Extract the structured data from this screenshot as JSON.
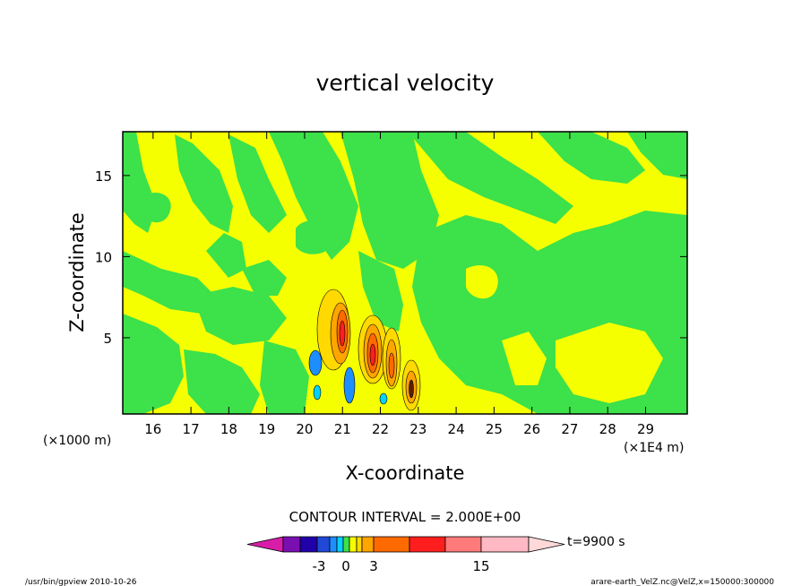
{
  "chart_data": {
    "type": "heatmap",
    "title": "vertical velocity",
    "xlabel": "X-coordinate",
    "ylabel": "Z-coordinate",
    "x_unit_left": "(×1000 m)",
    "x_unit_right": "(×1E4 m)",
    "xlim": [
      15.2,
      30.1
    ],
    "ylim": [
      0.3,
      17.7
    ],
    "x_ticks": [
      16,
      17,
      18,
      19,
      20,
      21,
      22,
      23,
      24,
      25,
      26,
      27,
      28,
      29
    ],
    "y_ticks": [
      5,
      10,
      15
    ],
    "contour_interval_text": "CONTOUR INTERVAL = 2.000E+00",
    "time_text": "t=9900 s",
    "colorbar": {
      "levels_labels": [
        "-3",
        "0",
        "3",
        "15"
      ],
      "colors": [
        "#d81ea8",
        "#7a0fb0",
        "#2000a8",
        "#1f49d6",
        "#1e8eff",
        "#00d2ff",
        "#3de14a",
        "#f5ff00",
        "#ffd900",
        "#ffa500",
        "#ff6a00",
        "#ff1e1e",
        "#ff7a7a",
        "#ffb9c4",
        "#ffd9d9"
      ]
    },
    "fill_colors": {
      "yellow": "#f5ff00",
      "green": "#3de14a",
      "cyan": "#00d2ff",
      "blue": "#1e8eff",
      "gold": "#ffd900",
      "orange": "#ffa500",
      "deep_orange": "#ff6a00",
      "red": "#ff1e1e",
      "dark": "#5a1f00"
    }
  },
  "footer": {
    "left": "/usr/bin/gpview  2010-10-26",
    "right": "arare-earth_VelZ.nc@VelZ,x=150000:300000"
  }
}
